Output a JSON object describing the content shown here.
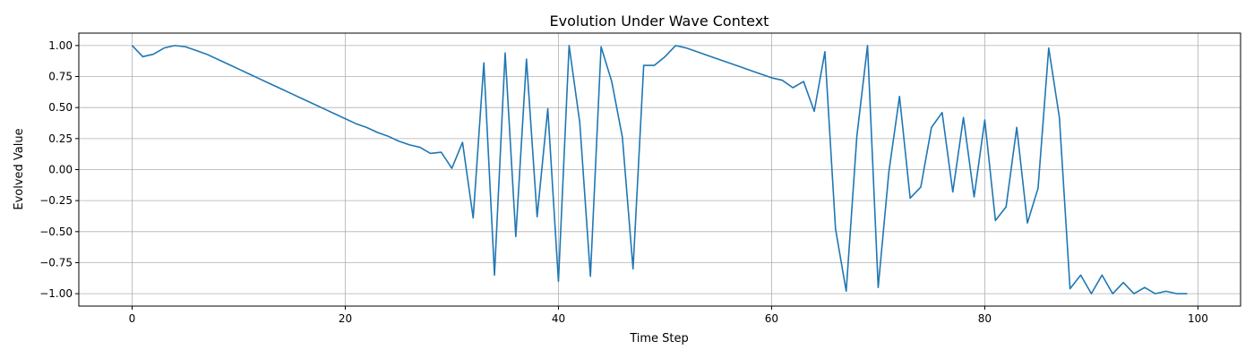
{
  "chart_data": {
    "type": "line",
    "title": "Evolution Under Wave Context",
    "xlabel": "Time Step",
    "ylabel": "Evolved Value",
    "xlim": [
      -5,
      104
    ],
    "ylim": [
      -1.1,
      1.1
    ],
    "x_ticks": [
      0,
      20,
      40,
      60,
      80,
      100
    ],
    "x_tick_labels": [
      "0",
      "20",
      "40",
      "60",
      "80",
      "100"
    ],
    "y_ticks": [
      1.0,
      0.75,
      0.5,
      0.25,
      0.0,
      -0.25,
      -0.5,
      -0.75,
      -1.0
    ],
    "y_tick_labels": [
      "1.00",
      "0.75",
      "0.50",
      "0.25",
      "0.00",
      "−0.25",
      "−0.50",
      "−0.75",
      "−1.00"
    ],
    "grid": true,
    "line_color": "#1f77b4",
    "series": [
      {
        "x": [
          0,
          1,
          2,
          3,
          4,
          5,
          6,
          7,
          8,
          9,
          10,
          11,
          12,
          13,
          14,
          15,
          16,
          17,
          18,
          19,
          20,
          21,
          22,
          23,
          24,
          25,
          26,
          27,
          28,
          29,
          30,
          31,
          32,
          33,
          34,
          35,
          36,
          37,
          38,
          39,
          40,
          41,
          42,
          43,
          44,
          45,
          46,
          47,
          48,
          49,
          50,
          51,
          52,
          53,
          54,
          55,
          56,
          57,
          58,
          59,
          60,
          61,
          62,
          63,
          64,
          65,
          66,
          67,
          68,
          69,
          70,
          71,
          72,
          73,
          74,
          75,
          76,
          77,
          78,
          79,
          80,
          81,
          82,
          83,
          84,
          85,
          86,
          87,
          88,
          89,
          90,
          91,
          92,
          93,
          94,
          95,
          96,
          97,
          98,
          99
        ],
        "values": [
          1.0,
          0.91,
          0.93,
          0.98,
          1.0,
          0.99,
          0.96,
          0.93,
          0.89,
          0.85,
          0.81,
          0.77,
          0.73,
          0.69,
          0.65,
          0.61,
          0.57,
          0.53,
          0.49,
          0.45,
          0.41,
          0.37,
          0.34,
          0.3,
          0.27,
          0.23,
          0.2,
          0.18,
          0.13,
          0.14,
          0.01,
          0.22,
          -0.39,
          0.86,
          -0.85,
          0.94,
          -0.54,
          0.89,
          -0.38,
          0.49,
          -0.9,
          1.0,
          0.38,
          -0.86,
          0.99,
          0.71,
          0.26,
          -0.8,
          0.84,
          0.84,
          0.91,
          1.0,
          0.98,
          0.95,
          0.92,
          0.89,
          0.86,
          0.83,
          0.8,
          0.77,
          0.74,
          0.72,
          0.66,
          0.71,
          0.47,
          0.95,
          -0.48,
          -0.98,
          0.27,
          1.0,
          -0.95,
          -0.02,
          0.59,
          -0.23,
          -0.14,
          0.34,
          0.46,
          -0.18,
          0.42,
          -0.22,
          0.4,
          -0.41,
          -0.3,
          0.34,
          -0.43,
          -0.15,
          0.98,
          0.42,
          -0.96,
          -0.85,
          -1.0,
          -0.85,
          -1.0,
          -0.91,
          -1.0,
          -0.95,
          -1.0,
          -0.98,
          -1.0,
          -1.0
        ]
      }
    ]
  }
}
